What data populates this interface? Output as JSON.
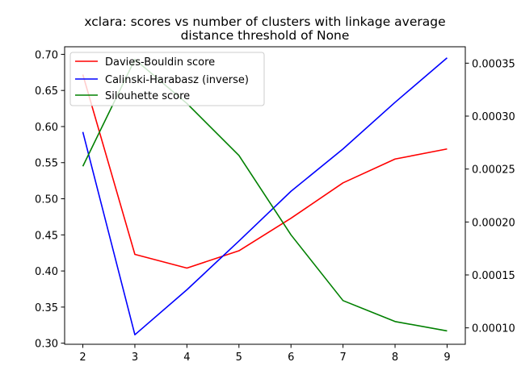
{
  "chart_data": {
    "type": "line",
    "title": "xclara: scores vs number of clusters with linkage average",
    "subtitle": "distance threshold of None",
    "xlabel": "",
    "ylabel": "",
    "y2label": "",
    "x": [
      2,
      3,
      4,
      5,
      6,
      7,
      8,
      9
    ],
    "xlim": [
      1.65,
      9.35
    ],
    "ylim": [
      0.2985,
      0.7105
    ],
    "y2lim": [
      8.45e-05,
      0.0003655
    ],
    "xticks": [
      2,
      3,
      4,
      5,
      6,
      7,
      8,
      9
    ],
    "yticks": [
      "0.30",
      "0.35",
      "0.40",
      "0.45",
      "0.50",
      "0.55",
      "0.60",
      "0.65",
      "0.70"
    ],
    "y2ticks": [
      "0.00010",
      "0.00015",
      "0.00020",
      "0.00025",
      "0.00030",
      "0.00035"
    ],
    "grid": false,
    "legend_position": "top-left",
    "series": [
      {
        "name": "Davies-Bouldin score",
        "color": "#ff0000",
        "axis": "left",
        "values": [
          0.672,
          0.423,
          0.404,
          0.428,
          0.473,
          0.522,
          0.555,
          0.569
        ]
      },
      {
        "name": "Calinski-Harabasz (inverse)",
        "color": "#0000ff",
        "axis": "right",
        "values": [
          0.000285,
          9.35e-05,
          0.000136,
          0.000182,
          0.000229,
          0.000269,
          0.000313,
          0.000355
        ]
      },
      {
        "name": "Silouhette score",
        "color": "#008000",
        "axis": "left",
        "values": [
          0.545,
          0.693,
          0.632,
          0.56,
          0.45,
          0.359,
          0.33,
          0.317
        ]
      }
    ]
  }
}
